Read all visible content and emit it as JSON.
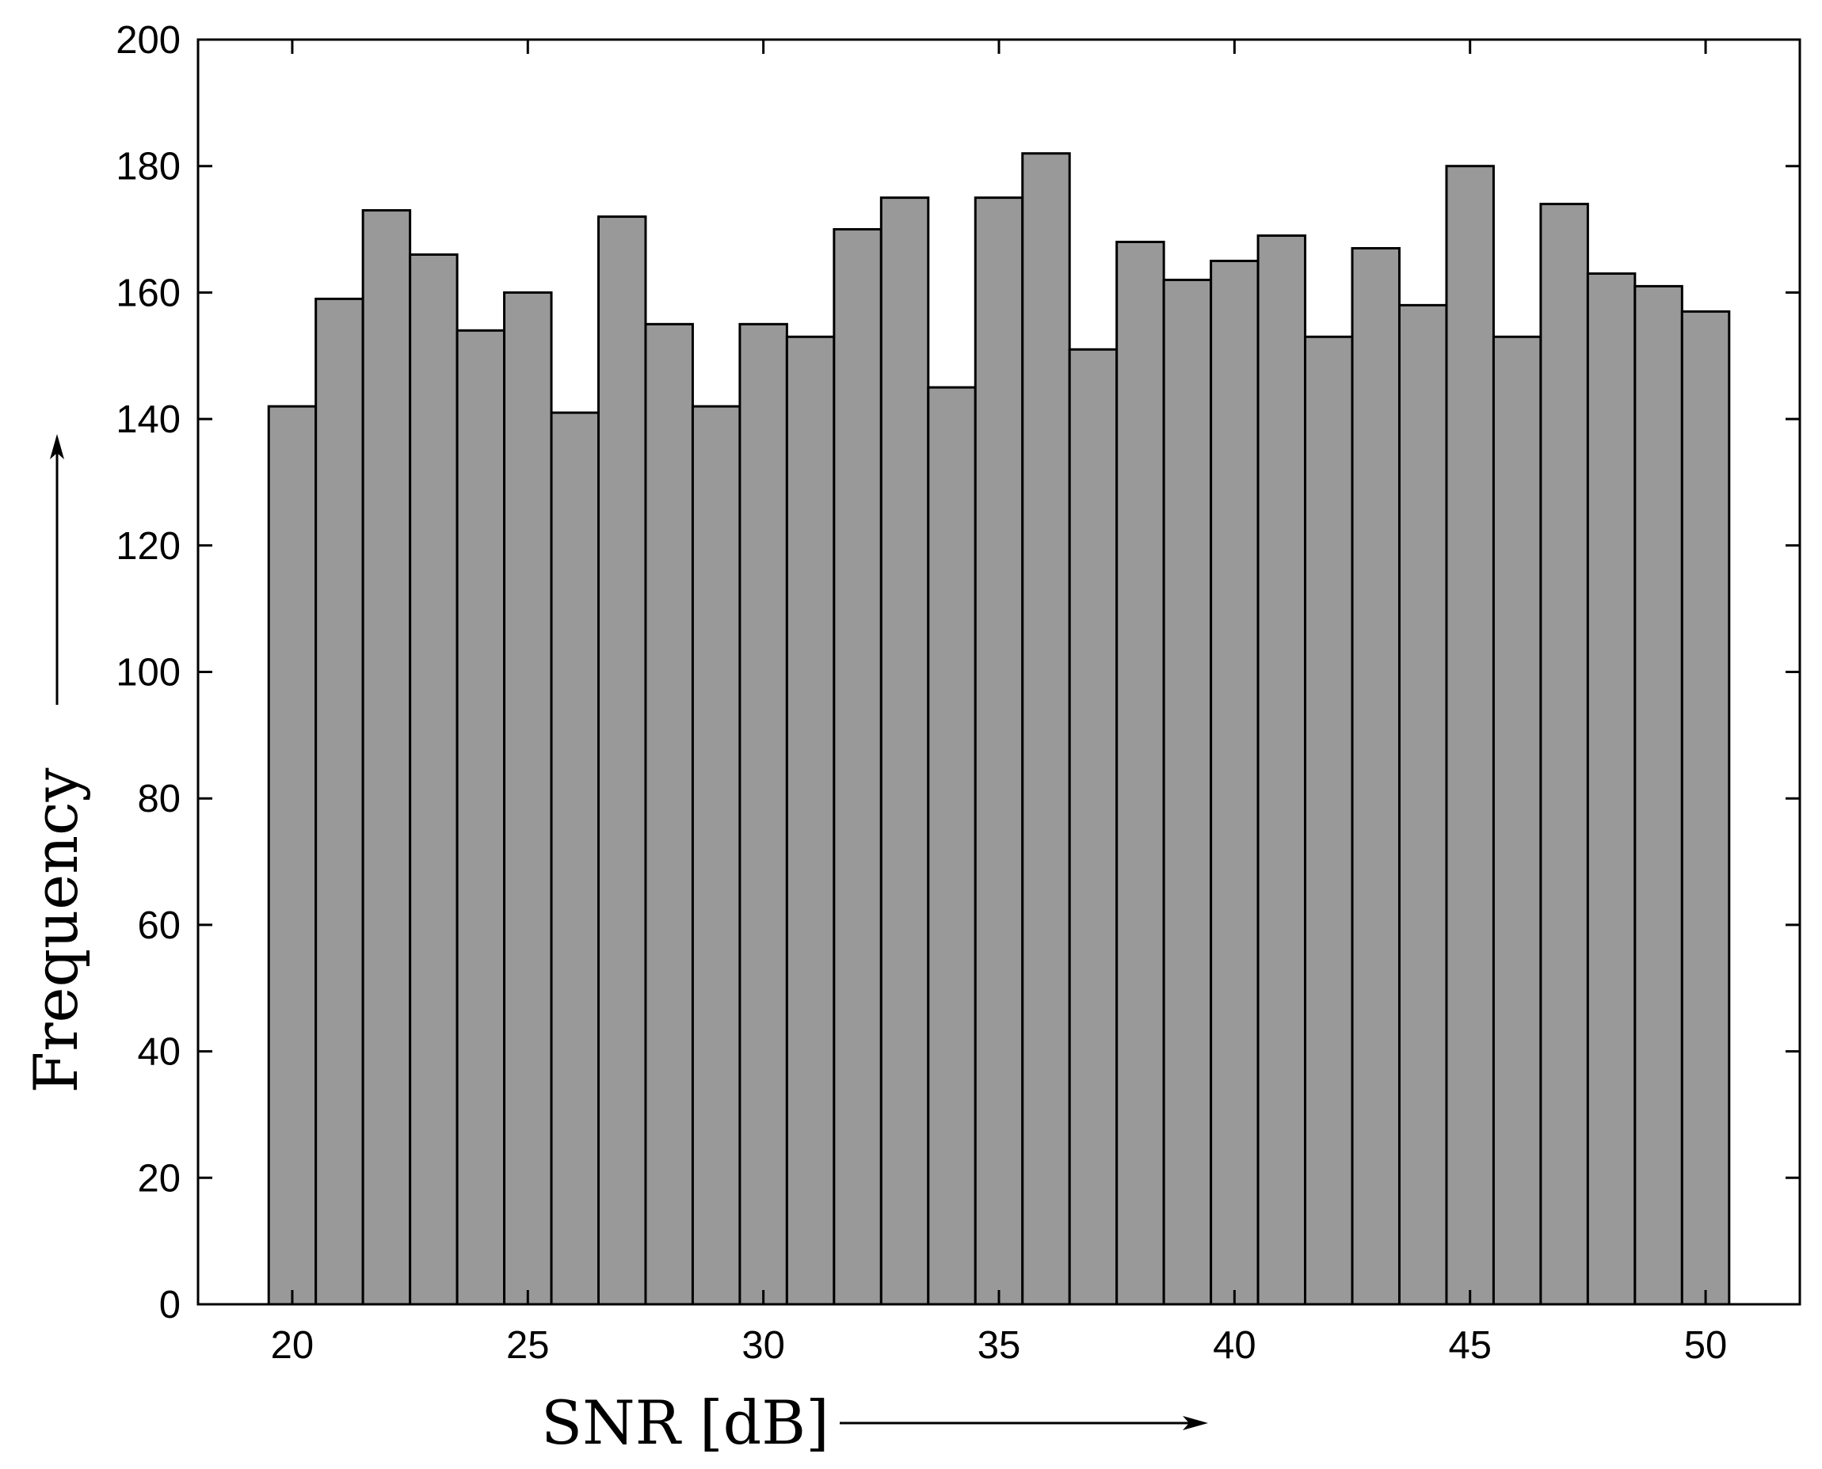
{
  "chart_data": {
    "type": "bar",
    "x": [
      20,
      21,
      22,
      23,
      24,
      25,
      26,
      27,
      28,
      29,
      30,
      31,
      32,
      33,
      34,
      35,
      36,
      37,
      38,
      39,
      40,
      41,
      42,
      43,
      44,
      45,
      46,
      47,
      48,
      49,
      50
    ],
    "values": [
      142,
      159,
      173,
      166,
      154,
      160,
      141,
      172,
      155,
      142,
      155,
      153,
      170,
      175,
      145,
      175,
      182,
      151,
      168,
      162,
      165,
      169,
      153,
      167,
      158,
      180,
      153,
      174,
      163,
      161,
      157
    ],
    "bin_width": 1,
    "xlabel": "SNR [dB]",
    "ylabel": "Frequency",
    "xlim": [
      18,
      52
    ],
    "ylim": [
      0,
      200
    ],
    "xticks": [
      20,
      25,
      30,
      35,
      40,
      45,
      50
    ],
    "yticks": [
      0,
      20,
      40,
      60,
      80,
      100,
      120,
      140,
      160,
      180,
      200
    ],
    "bar_color": "#999999",
    "edge_color": "#000000",
    "grid": false,
    "legend": "none"
  }
}
